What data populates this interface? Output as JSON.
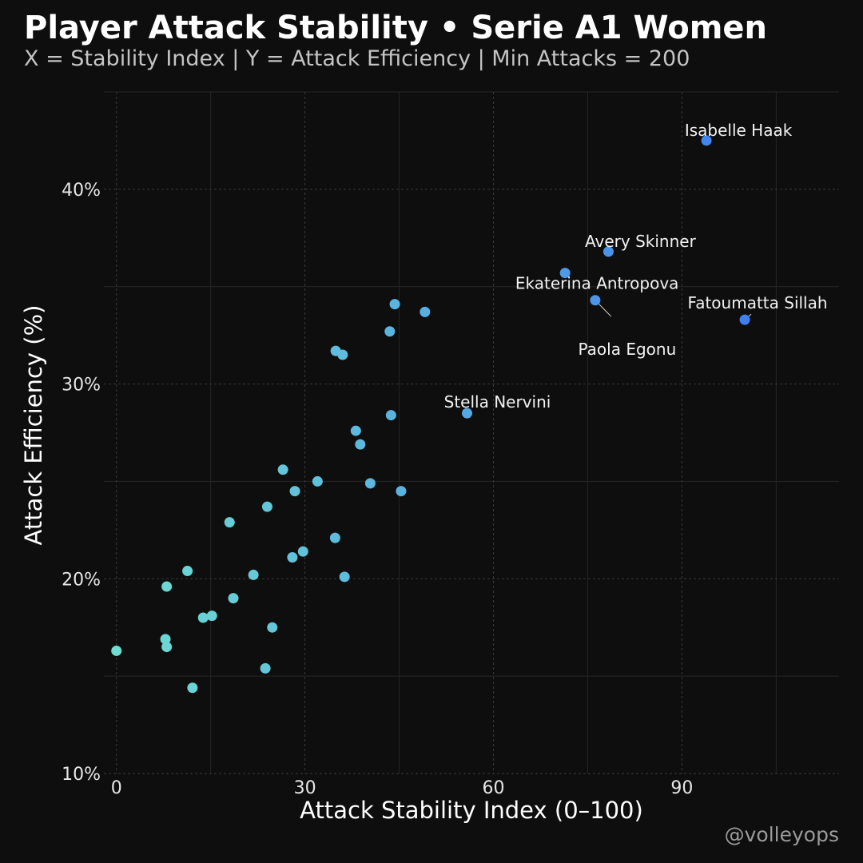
{
  "header": {
    "title": "Player Attack Stability • Serie A1 Women",
    "subtitle": "X = Stability Index | Y = Attack Efficiency | Min Attacks = 200"
  },
  "footer": {
    "caption": "@volleyops"
  },
  "colors": {
    "background": "#0e0e0e",
    "grid_major": "#3a3a3a",
    "grid_minor": "#262626",
    "low": "#6fded1",
    "high": "#3f7ff0"
  },
  "chart_data": {
    "type": "scatter",
    "title": "Player Attack Stability • Serie A1 Women",
    "xlabel": "Attack Stability Index (0–100)",
    "ylabel": "Attack Efficiency (%)",
    "xlim": [
      -2,
      115
    ],
    "ylim": [
      10,
      45
    ],
    "xticks": [
      0,
      30,
      60,
      90
    ],
    "xtick_labels": [
      "0",
      "30",
      "60",
      "90"
    ],
    "yticks": [
      10,
      20,
      30,
      40
    ],
    "ytick_labels": [
      "10%",
      "20%",
      "30%",
      "40%"
    ],
    "grid": true,
    "points": [
      {
        "x": 0,
        "y": 16.3
      },
      {
        "x": 7.8,
        "y": 16.9
      },
      {
        "x": 8.0,
        "y": 16.5
      },
      {
        "x": 8.0,
        "y": 19.6
      },
      {
        "x": 11.3,
        "y": 20.4
      },
      {
        "x": 12.1,
        "y": 14.4
      },
      {
        "x": 13.8,
        "y": 18.0
      },
      {
        "x": 15.2,
        "y": 18.1
      },
      {
        "x": 18.0,
        "y": 22.9
      },
      {
        "x": 18.6,
        "y": 19.0
      },
      {
        "x": 21.8,
        "y": 20.2
      },
      {
        "x": 23.7,
        "y": 15.4
      },
      {
        "x": 24.0,
        "y": 23.7
      },
      {
        "x": 24.8,
        "y": 17.5
      },
      {
        "x": 26.5,
        "y": 25.6
      },
      {
        "x": 28.0,
        "y": 21.1
      },
      {
        "x": 28.4,
        "y": 24.5
      },
      {
        "x": 29.7,
        "y": 21.4
      },
      {
        "x": 32.0,
        "y": 25.0
      },
      {
        "x": 34.8,
        "y": 22.1
      },
      {
        "x": 34.9,
        "y": 31.7
      },
      {
        "x": 36.0,
        "y": 31.5
      },
      {
        "x": 36.3,
        "y": 20.1
      },
      {
        "x": 38.1,
        "y": 27.6
      },
      {
        "x": 38.8,
        "y": 26.9
      },
      {
        "x": 40.4,
        "y": 24.9
      },
      {
        "x": 43.5,
        "y": 32.7
      },
      {
        "x": 43.7,
        "y": 28.4
      },
      {
        "x": 44.3,
        "y": 34.1
      },
      {
        "x": 45.3,
        "y": 24.5
      },
      {
        "x": 49.1,
        "y": 33.7
      },
      {
        "x": 55.8,
        "y": 28.5,
        "label": "Stella Nervini"
      },
      {
        "x": 71.4,
        "y": 35.7,
        "label": "Ekaterina Antropova"
      },
      {
        "x": 76.2,
        "y": 34.3,
        "label": "Paola Egonu"
      },
      {
        "x": 78.3,
        "y": 36.8,
        "label": "Avery Skinner"
      },
      {
        "x": 93.9,
        "y": 42.5,
        "label": "Isabelle Haak"
      },
      {
        "x": 100.0,
        "y": 33.3,
        "label": "Fatoumatta Sillah"
      }
    ]
  }
}
